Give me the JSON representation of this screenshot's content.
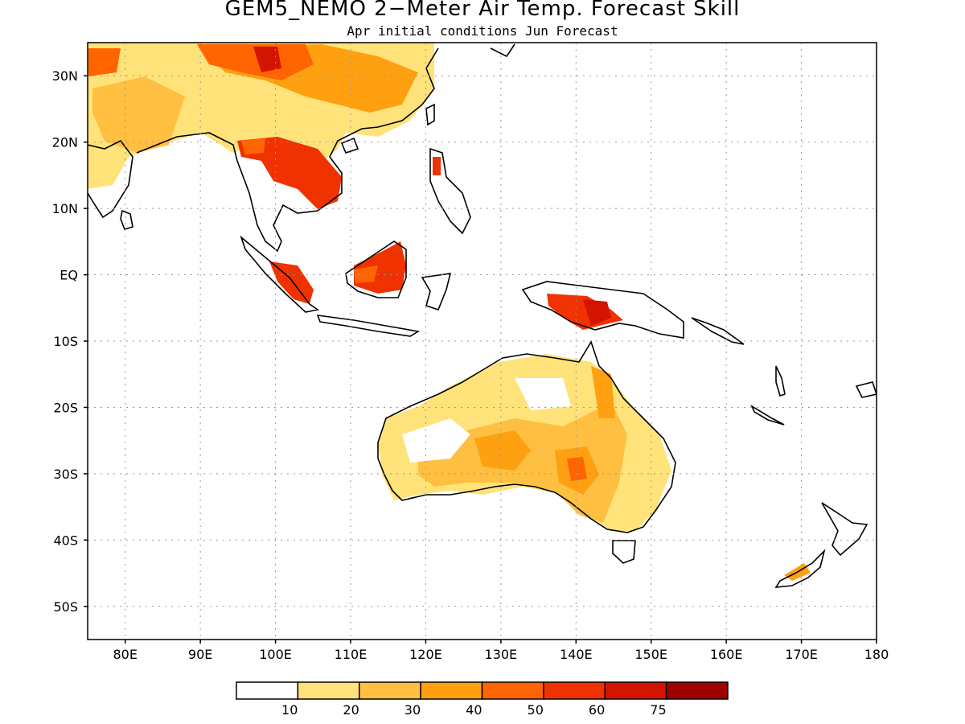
{
  "title": "GEM5_NEMO 2−Meter Air Temp. Forecast Skill",
  "subtitle": "Apr initial conditions  Jun Forecast",
  "chart_data": {
    "type": "heatmap",
    "x_ticks": [
      "80E",
      "90E",
      "100E",
      "110E",
      "120E",
      "130E",
      "140E",
      "150E",
      "160E",
      "170E",
      "180"
    ],
    "y_ticks": [
      "30N",
      "20N",
      "10N",
      "EQ",
      "10S",
      "20S",
      "30S",
      "40S",
      "50S"
    ],
    "xlim": [
      75,
      180
    ],
    "ylim": [
      -55,
      35
    ],
    "grid": true,
    "colorbar": {
      "labels": [
        "10",
        "20",
        "30",
        "40",
        "50",
        "60",
        "75"
      ],
      "colors": [
        "#ffffff",
        "#ffe37a",
        "#ffbf40",
        "#ffa010",
        "#ff6400",
        "#f03200",
        "#d21400",
        "#a00000"
      ]
    }
  }
}
